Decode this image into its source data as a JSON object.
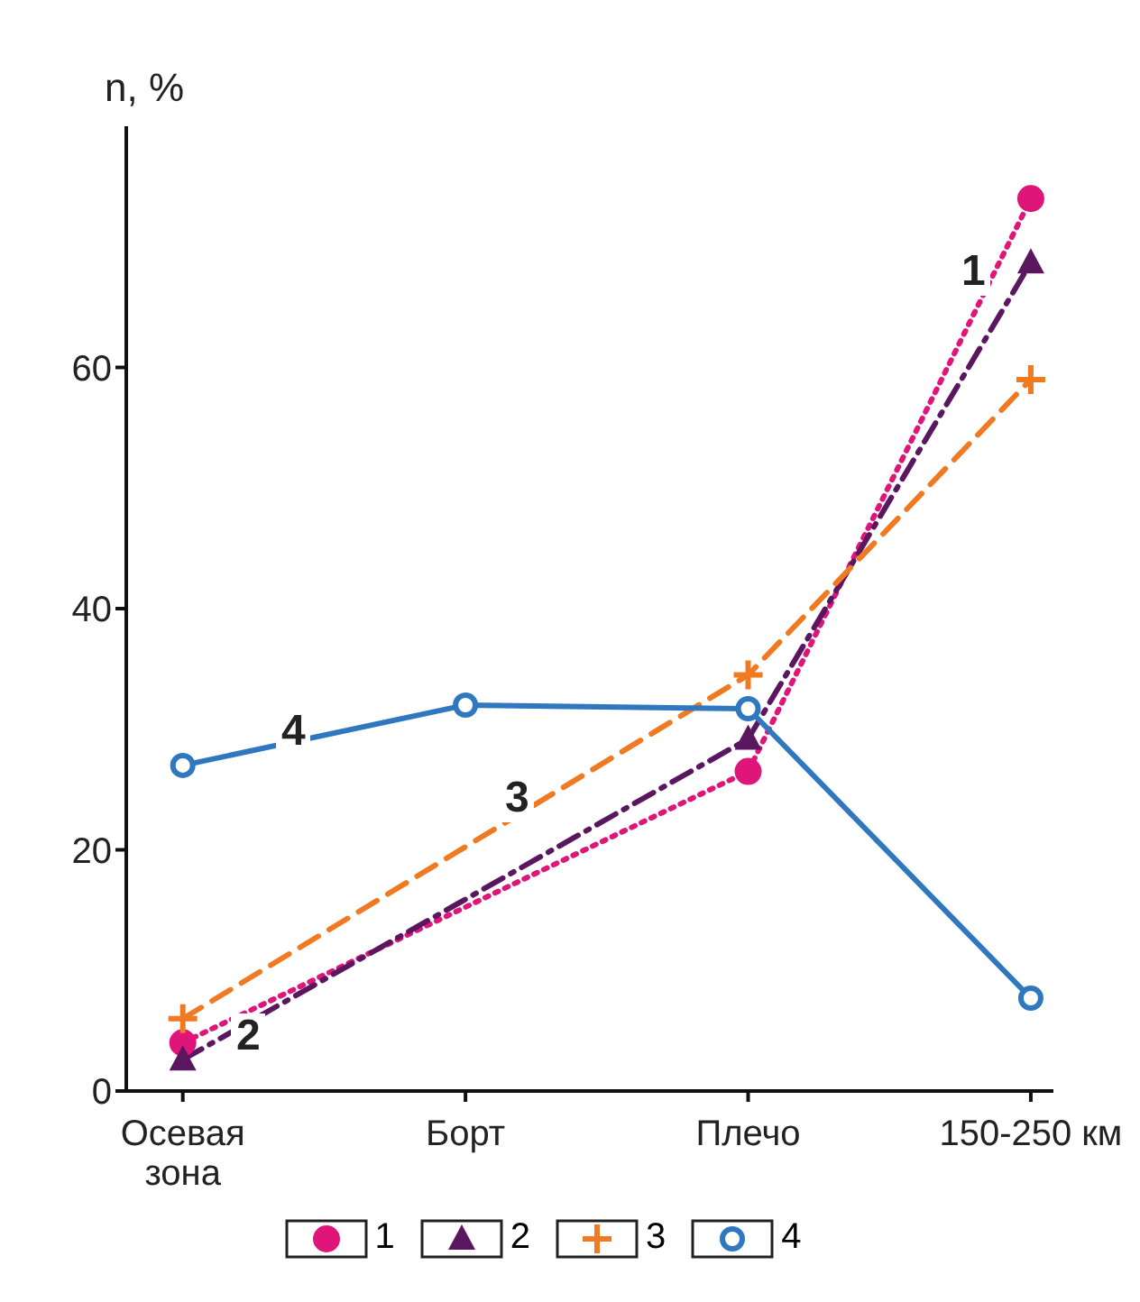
{
  "chart_data": {
    "type": "line",
    "ylabel": "n, %",
    "categories": [
      "Осевая зона",
      "Борт",
      "Плечо",
      "150-250 км"
    ],
    "ylim": [
      0,
      80
    ],
    "yticks": [
      0,
      20,
      40,
      60
    ],
    "legend": "bottom",
    "series": [
      {
        "name": "1",
        "color": "#e0157a",
        "values": [
          4,
          null,
          26.5,
          74
        ],
        "marker": "circle",
        "line_style": "dotted"
      },
      {
        "name": "2",
        "color": "#5b1660",
        "values": [
          2.6,
          null,
          29.2,
          68.7
        ],
        "marker": "triangle",
        "line_style": "dashdot"
      },
      {
        "name": "3",
        "color": "#f07a22",
        "values": [
          6,
          null,
          34.5,
          59
        ],
        "marker": "cross",
        "line_style": "dashed"
      },
      {
        "name": "4",
        "color": "#2f78c0",
        "values": [
          27,
          32,
          31.7,
          7.7
        ],
        "marker": "circle",
        "line_style": "solid"
      }
    ],
    "annotations": [
      "1",
      "2",
      "3",
      "4"
    ]
  }
}
